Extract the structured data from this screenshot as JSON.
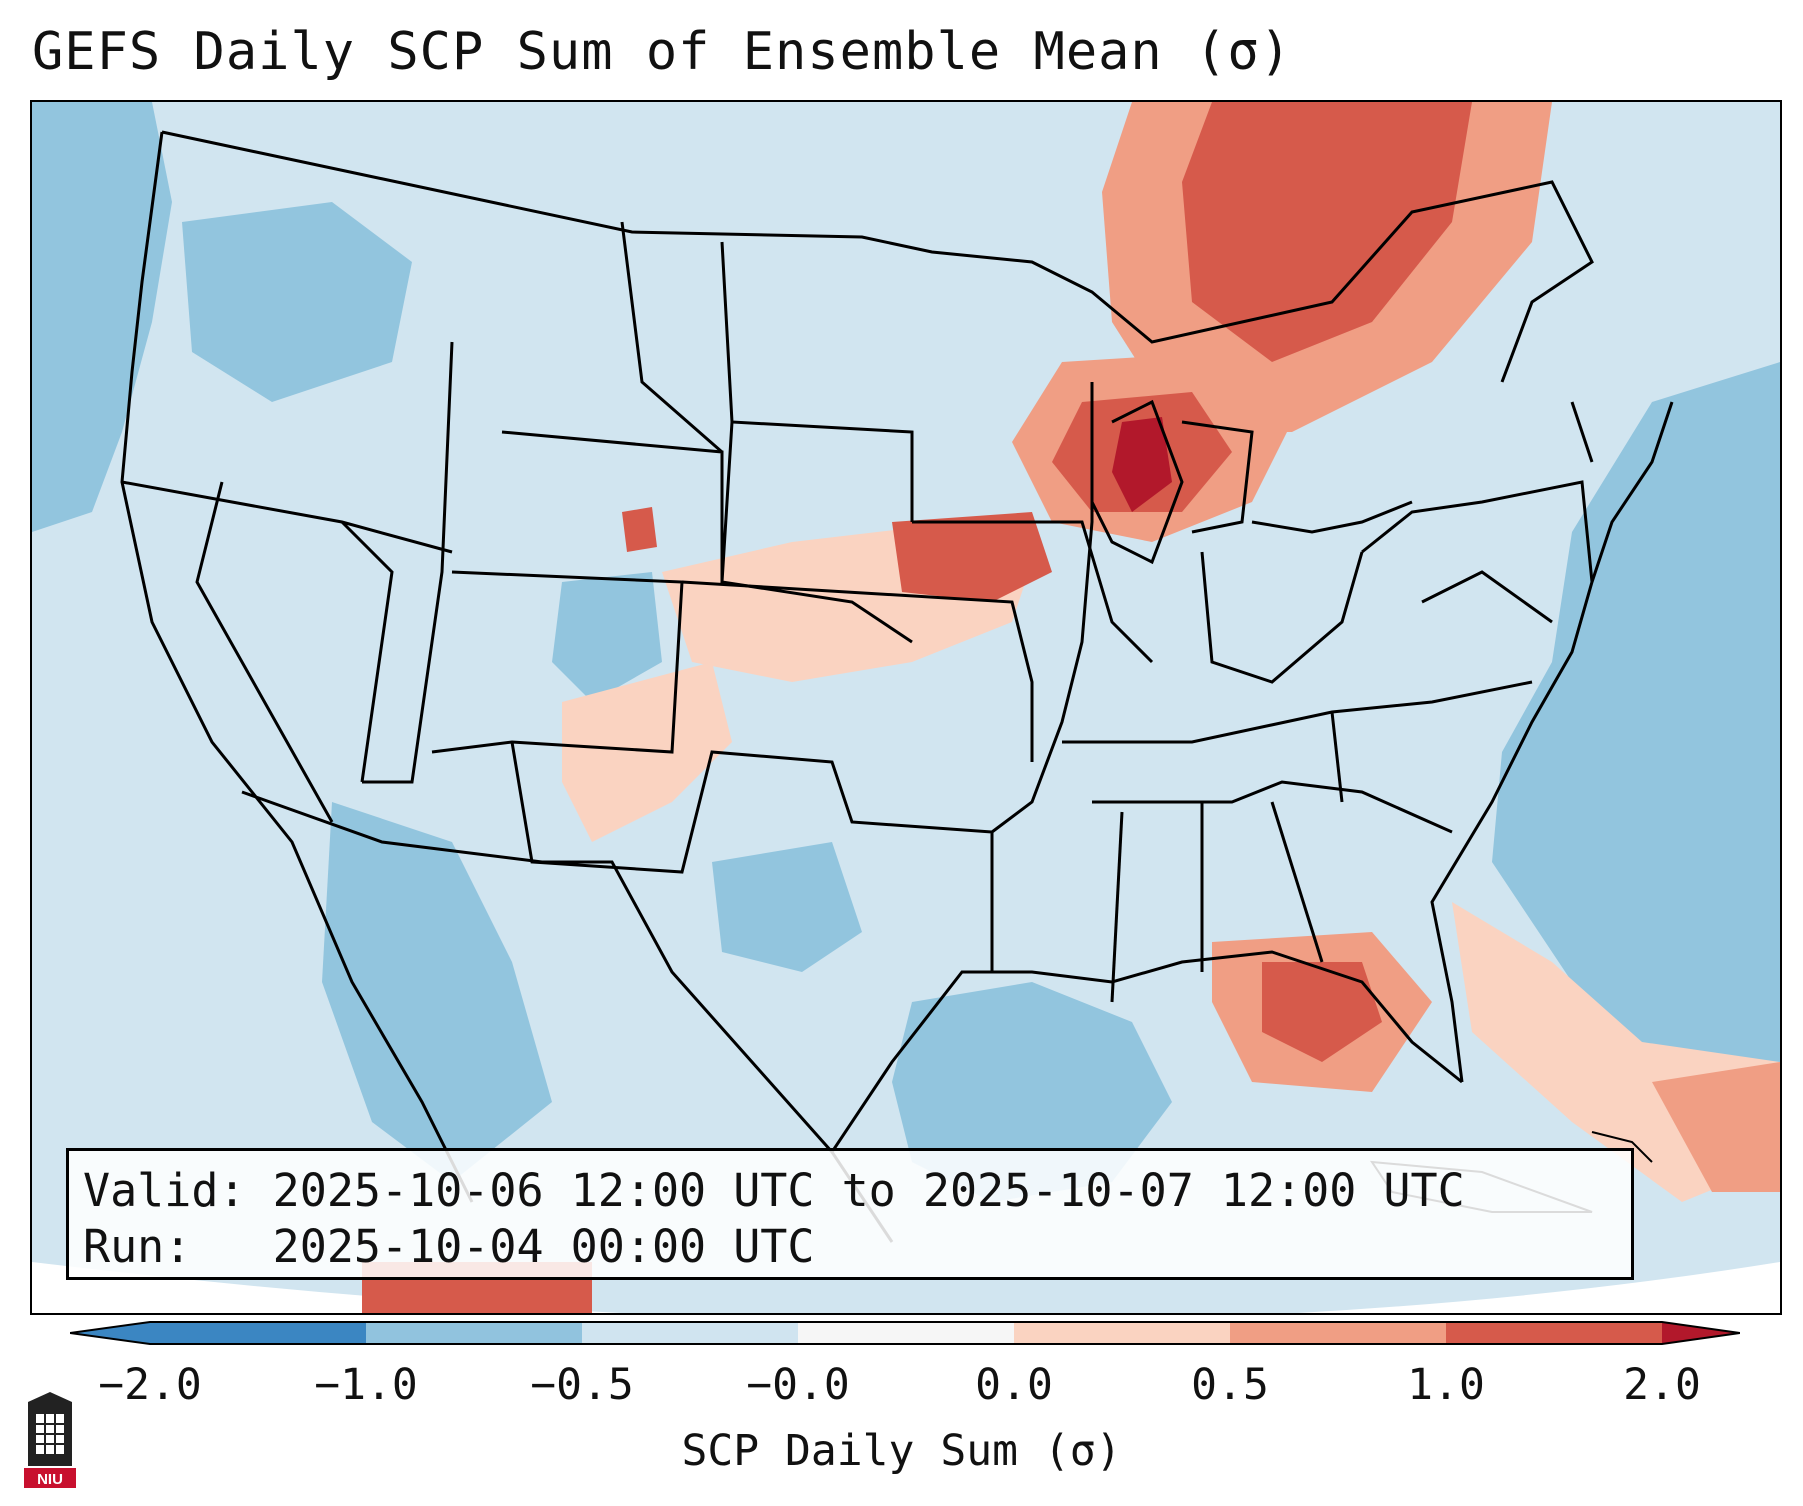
{
  "title": "GEFS Daily SCP Sum of Ensemble Mean (σ)",
  "info_box": {
    "valid_line": "Valid: 2025-10-06 12:00 UTC to 2025-10-07 12:00 UTC",
    "run_line": "Run:   2025-10-04 00:00 UTC"
  },
  "colorbar": {
    "label": "SCP Daily Sum (σ)",
    "ticks": [
      "−2.0",
      "−1.0",
      "−0.5",
      "−0.0",
      "0.0",
      "0.5",
      "1.0",
      "2.0"
    ],
    "colors": [
      "#3b86c2",
      "#91c3de",
      "#d0e4f0",
      "#f6f6f6",
      "#fad3c1",
      "#f09e84",
      "#d65a4b",
      "#b2182b"
    ],
    "extend": "both"
  },
  "logo": {
    "text": "NIU",
    "color": "#c8102e"
  },
  "legend_colors": {
    "land_mask": "#d1e5f0",
    "ocean": "#92c5de",
    "outside": "#ffffff"
  },
  "map_regions": [
    {
      "name": "upper-great-lakes",
      "category": "2.0"
    },
    {
      "name": "iowa",
      "category": "1.0"
    },
    {
      "name": "northern-ontario-quebec",
      "category": "1.0"
    },
    {
      "name": "eastern-gulf",
      "category": "1.0"
    },
    {
      "name": "plains",
      "category": "0.5"
    },
    {
      "name": "atlantic",
      "category": "-1.0"
    },
    {
      "name": "gulf-west",
      "category": "-1.0"
    }
  ]
}
